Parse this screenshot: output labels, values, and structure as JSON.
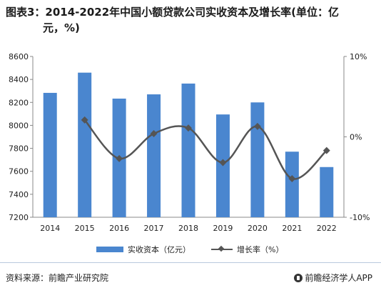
{
  "title": {
    "line1": "图表3：2014-2022年中国小额贷款公司实收资本及增长率(单位：亿",
    "line2": "元，%)"
  },
  "chart_data": {
    "type": "bar+line",
    "categories": [
      "2014",
      "2015",
      "2016",
      "2017",
      "2018",
      "2019",
      "2020",
      "2021",
      "2022"
    ],
    "series": [
      {
        "name": "实收资本（亿元）",
        "type": "bar",
        "axis": "left",
        "values": [
          8283,
          8459,
          8233,
          8270,
          8364,
          8095,
          8200,
          7771,
          7637
        ]
      },
      {
        "name": "增长率（%）",
        "type": "line",
        "axis": "right",
        "values": [
          null,
          2.1,
          -2.7,
          0.4,
          1.1,
          -3.2,
          1.3,
          -5.2,
          -1.7
        ]
      }
    ],
    "y_left": {
      "min": 7200,
      "max": 8600,
      "ticks": [
        "7200",
        "7400",
        "7600",
        "7800",
        "8000",
        "8200",
        "8400",
        "8600"
      ]
    },
    "y_right": {
      "min": -10,
      "max": 10,
      "ticks": [
        "-10%",
        "0%",
        "10%"
      ]
    },
    "grid": false,
    "legend_position": "bottom",
    "colors": {
      "bar": "#4a86cf",
      "line": "#555555"
    }
  },
  "legend": {
    "bar_label": "实收资本（亿元）",
    "line_label": "增长率（%）"
  },
  "footer": {
    "source": "资料来源：前瞻产业研究院",
    "brand": "前瞻经济学人APP"
  }
}
